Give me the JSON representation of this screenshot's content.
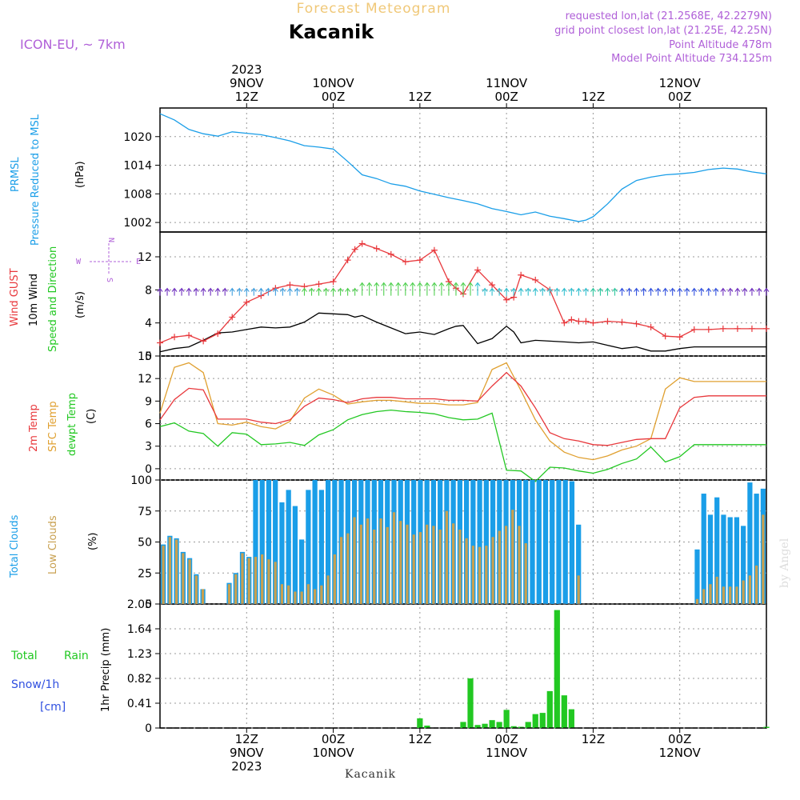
{
  "header": {
    "title": "Forecast Meteogram",
    "location": "Kacanik",
    "model": "ICON-EU, ~ 7km",
    "requested": "requested lon,lat (21.2568E, 42.2279N)",
    "grid_point": "grid point closest lon,lat (21.25E, 42.25N)",
    "point_altitude": "Point Altitude 478m",
    "model_altitude": "Model Point Altitude 734.125m",
    "footer": "Kacanik",
    "credit": "by Angel"
  },
  "time_axis": {
    "top": [
      {
        "hour": 12,
        "line1": "2023",
        "line2": "9NOV",
        "line3": "12Z"
      },
      {
        "hour": 24,
        "line1": "",
        "line2": "10NOV",
        "line3": "00Z"
      },
      {
        "hour": 36,
        "line1": "",
        "line2": "",
        "line3": "12Z"
      },
      {
        "hour": 48,
        "line1": "",
        "line2": "11NOV",
        "line3": "00Z"
      },
      {
        "hour": 60,
        "line1": "",
        "line2": "",
        "line3": "12Z"
      },
      {
        "hour": 72,
        "line1": "",
        "line2": "12NOV",
        "line3": "00Z"
      }
    ],
    "bottom": [
      {
        "hour": 12,
        "line1": "12Z",
        "line2": "9NOV",
        "line3": "2023"
      },
      {
        "hour": 24,
        "line1": "00Z",
        "line2": "10NOV",
        "line3": ""
      },
      {
        "hour": 36,
        "line1": "12Z",
        "line2": "",
        "line3": ""
      },
      {
        "hour": 48,
        "line1": "00Z",
        "line2": "11NOV",
        "line3": ""
      },
      {
        "hour": 60,
        "line1": "12Z",
        "line2": "",
        "line3": ""
      },
      {
        "hour": 72,
        "line1": "00Z",
        "line2": "12NOV",
        "line3": ""
      }
    ]
  },
  "panels": {
    "pressure": {
      "label1": "PRMSL",
      "label2": "Pressure Reduced to MSL",
      "unit": "(hPa)",
      "ticks": [
        "1002",
        "1008",
        "1014",
        "1020"
      ]
    },
    "wind": {
      "label1": "Wind GUST",
      "label2": "10m Wind",
      "label3": "Speed and Direction",
      "unit": "(m/s)",
      "ticks": [
        "0",
        "4",
        "8",
        "12"
      ],
      "compass_n": "N",
      "compass_s": "S",
      "compass_w": "W",
      "compass_e": "E"
    },
    "temp": {
      "label1": "2m Temp",
      "label2": "SFC Temp",
      "label3": "dewpt Temp",
      "unit": "(C)",
      "ticks": [
        "0",
        "3",
        "6",
        "9",
        "12",
        "15"
      ]
    },
    "clouds": {
      "label1": "Total Clouds",
      "label2": "Low Clouds",
      "unit": "(%)",
      "ticks": [
        "0",
        "25",
        "50",
        "75",
        "100"
      ]
    },
    "precip": {
      "label1": "Total",
      "label1b": "Rain",
      "label2": "Snow/1h",
      "label3": "[cm]",
      "unit": "1hr Precip (mm)",
      "ticks": [
        "0",
        "0.41",
        "0.82",
        "1.23",
        "1.64",
        "2.05"
      ]
    }
  },
  "colors": {
    "pressure": "#1a9ee8",
    "gust": "#e8383c",
    "wind": "#000000",
    "temp2m": "#e8383c",
    "sfc": "#e0a030",
    "dewpt": "#22c822",
    "total_clouds": "#1a9ee8",
    "low_clouds": "#c8a050",
    "rain": "#22c822",
    "title": "#f0c878",
    "info": "#b060d8",
    "snow": "#3050e0",
    "frame": "#000000"
  },
  "chart_data": {
    "type": "line",
    "x_unit": "forecast hour (0 = 2023-11-09 04Z)",
    "x_range": [
      0,
      84
    ],
    "series": {
      "pressure_hpa": {
        "x": [
          0,
          2,
          4,
          6,
          8,
          10,
          12,
          14,
          16,
          18,
          20,
          22,
          24,
          26,
          28,
          30,
          32,
          34,
          36,
          38,
          40,
          42,
          44,
          46,
          48,
          50,
          52,
          54,
          56,
          58,
          59,
          60,
          62,
          64,
          66,
          68,
          70,
          72,
          74,
          76,
          78,
          80,
          82,
          84
        ],
        "y": [
          1024.8,
          1023.5,
          1021.5,
          1020.6,
          1020.1,
          1021,
          1020.7,
          1020.4,
          1019.8,
          1019.1,
          1018.1,
          1017.8,
          1017.4,
          1014.8,
          1012,
          1011.2,
          1010.1,
          1009.6,
          1008.6,
          1007.9,
          1007.2,
          1006.6,
          1005.9,
          1004.9,
          1004.3,
          1003.6,
          1004.2,
          1003.3,
          1002.8,
          1002.2,
          1002.5,
          1003.2,
          1005.9,
          1009,
          1010.8,
          1011.5,
          1012,
          1012.2,
          1012.5,
          1013.1,
          1013.4,
          1013.2,
          1012.6,
          1012.2
        ]
      },
      "gust_ms": {
        "x": [
          0,
          2,
          4,
          6,
          8,
          10,
          12,
          14,
          16,
          18,
          20,
          22,
          24,
          26,
          27,
          28,
          30,
          32,
          34,
          36,
          38,
          40,
          41,
          42,
          44,
          46,
          48,
          49,
          50,
          52,
          54,
          56,
          57,
          58,
          59,
          60,
          62,
          64,
          66,
          68,
          70,
          72,
          74,
          76,
          78,
          80,
          82,
          84
        ],
        "y": [
          1.6,
          2.3,
          2.5,
          1.8,
          2.7,
          4.7,
          6.5,
          7.3,
          8.2,
          8.6,
          8.4,
          8.7,
          9,
          11.6,
          12.9,
          13.6,
          13,
          12.3,
          11.4,
          11.6,
          12.8,
          9,
          8.2,
          7.5,
          10.4,
          8.6,
          6.8,
          7.1,
          9.8,
          9.2,
          8,
          4,
          4.4,
          4.2,
          4.2,
          4,
          4.2,
          4.1,
          3.9,
          3.5,
          2.4,
          2.3,
          3.2,
          3.2,
          3.3,
          3.3,
          3.3,
          3.3
        ]
      },
      "wind_ms": {
        "x": [
          0,
          2,
          4,
          6,
          8,
          10,
          12,
          14,
          16,
          18,
          20,
          22,
          24,
          26,
          27,
          28,
          30,
          32,
          34,
          36,
          38,
          40,
          41,
          42,
          44,
          46,
          48,
          49,
          50,
          52,
          54,
          56,
          58,
          60,
          62,
          64,
          66,
          68,
          70,
          72,
          74,
          76,
          78,
          80,
          82,
          84
        ],
        "y": [
          0.5,
          0.9,
          1.1,
          1.9,
          2.8,
          2.9,
          3.2,
          3.5,
          3.4,
          3.5,
          4.1,
          5.2,
          5.1,
          5,
          4.7,
          4.9,
          4.1,
          3.4,
          2.7,
          2.9,
          2.6,
          3.3,
          3.6,
          3.7,
          1.5,
          2.1,
          3.6,
          2.9,
          1.6,
          1.9,
          1.8,
          1.7,
          1.6,
          1.7,
          1.3,
          0.9,
          1.1,
          0.6,
          0.6,
          0.9,
          1.1,
          1.1,
          1.1,
          1.1,
          1.1,
          1.1
        ]
      },
      "temp2m_c": {
        "x": [
          0,
          2,
          4,
          6,
          8,
          10,
          12,
          14,
          16,
          18,
          20,
          22,
          24,
          26,
          28,
          30,
          32,
          34,
          36,
          38,
          40,
          42,
          44,
          46,
          48,
          50,
          52,
          54,
          56,
          58,
          60,
          62,
          64,
          66,
          68,
          70,
          72,
          74,
          76,
          78,
          80,
          82,
          84
        ],
        "y": [
          6.5,
          9.2,
          10.7,
          10.5,
          6.6,
          6.6,
          6.6,
          6.2,
          6,
          6.5,
          8.3,
          9.4,
          9.2,
          8.8,
          9.3,
          9.5,
          9.5,
          9.3,
          9.3,
          9.3,
          9.1,
          9.1,
          9,
          11,
          12.8,
          11,
          8.1,
          4.8,
          4,
          3.7,
          3.2,
          3.1,
          3.5,
          3.9,
          4,
          4,
          8.1,
          9.5,
          9.7,
          9.7,
          9.7,
          9.7,
          9.7
        ]
      },
      "sfc_temp_c": {
        "x": [
          0,
          2,
          4,
          6,
          8,
          10,
          12,
          14,
          16,
          18,
          20,
          22,
          24,
          26,
          28,
          30,
          32,
          34,
          36,
          38,
          40,
          42,
          44,
          46,
          48,
          50,
          52,
          54,
          56,
          58,
          60,
          62,
          64,
          66,
          68,
          70,
          72,
          74,
          76,
          78,
          80,
          82,
          84
        ],
        "y": [
          7.4,
          13.5,
          14.1,
          12.8,
          6,
          5.8,
          6.2,
          5.6,
          5.3,
          6.3,
          9.4,
          10.6,
          9.8,
          8.6,
          8.9,
          9.1,
          9.1,
          8.9,
          8.7,
          8.7,
          8.5,
          8.5,
          8.8,
          13.2,
          14.1,
          10.4,
          6.5,
          3.7,
          2.2,
          1.5,
          1.2,
          1.7,
          2.5,
          3,
          4,
          10.6,
          12.1,
          11.6,
          11.6,
          11.6,
          11.6,
          11.6,
          11.6
        ]
      },
      "dewpt_c": {
        "x": [
          0,
          2,
          4,
          6,
          8,
          10,
          12,
          14,
          16,
          18,
          20,
          22,
          24,
          26,
          28,
          30,
          32,
          34,
          36,
          38,
          40,
          42,
          44,
          46,
          48,
          50,
          52,
          54,
          56,
          58,
          60,
          62,
          64,
          66,
          68,
          70,
          72,
          74,
          76,
          78,
          80,
          82,
          84
        ],
        "y": [
          5.6,
          6.1,
          5,
          4.7,
          3,
          4.8,
          4.6,
          3.2,
          3.3,
          3.5,
          3.1,
          4.5,
          5.2,
          6.5,
          7.2,
          7.6,
          7.8,
          7.6,
          7.5,
          7.3,
          6.8,
          6.5,
          6.6,
          7.4,
          -0.2,
          -0.3,
          -1.7,
          0.2,
          0.1,
          -0.3,
          -0.6,
          -0.1,
          0.7,
          1.3,
          2.9,
          0.9,
          1.6,
          3.2,
          3.2,
          3.2,
          3.2,
          3.2,
          3.2
        ]
      },
      "total_clouds_pct": [
        48,
        55,
        53,
        42,
        37,
        24,
        12,
        0,
        0,
        0,
        17,
        25,
        42,
        38,
        100,
        100,
        100,
        100,
        82,
        92,
        79,
        52,
        92,
        100,
        92,
        100,
        100,
        100,
        100,
        100,
        100,
        100,
        100,
        100,
        100,
        100,
        100,
        100,
        100,
        100,
        100,
        100,
        100,
        100,
        100,
        100,
        100,
        100,
        100,
        100,
        100,
        100,
        100,
        100,
        100,
        100,
        100,
        100,
        100,
        100,
        100,
        100,
        99,
        64,
        0,
        0,
        0,
        0,
        0,
        0,
        0,
        0,
        0,
        0,
        0,
        0,
        0,
        0,
        0,
        0,
        0,
        44,
        89,
        72,
        86,
        72,
        70,
        70,
        63,
        98,
        89,
        93
      ],
      "low_clouds_pct": [
        47,
        54,
        52,
        41,
        36,
        23,
        12,
        0,
        0,
        0,
        16,
        24,
        41,
        37,
        38,
        40,
        36,
        34,
        16,
        15,
        10,
        10,
        16,
        12,
        15,
        23,
        40,
        54,
        57,
        70,
        64,
        69,
        60,
        69,
        62,
        74,
        67,
        64,
        56,
        58,
        64,
        63,
        60,
        75,
        65,
        60,
        53,
        47,
        46,
        47,
        54,
        59,
        63,
        76,
        63,
        49,
        0,
        0,
        0,
        0,
        0,
        0,
        0,
        23,
        0,
        0,
        0,
        0,
        0,
        0,
        0,
        0,
        0,
        0,
        0,
        0,
        0,
        0,
        0,
        0,
        0,
        4,
        12,
        16,
        22,
        14,
        14,
        14,
        19,
        23,
        31,
        72
      ],
      "precip_mm": {
        "x": [
          36,
          37,
          42,
          43,
          44,
          45,
          46,
          47,
          48,
          49,
          50,
          51,
          52,
          53,
          54,
          55,
          56,
          57,
          58,
          59,
          84
        ],
        "y": [
          0.16,
          0.04,
          0.1,
          0.82,
          0.05,
          0.07,
          0.13,
          0.1,
          0.3,
          0.03,
          0.02,
          0.1,
          0.23,
          0.25,
          0.61,
          1.95,
          0.54,
          0.31,
          0.0,
          0.0,
          0.02
        ]
      }
    },
    "axes": {
      "pressure": {
        "ylim": [
          1000,
          1026
        ]
      },
      "wind": {
        "ylim": [
          0,
          15
        ]
      },
      "temp": {
        "ylim": [
          -1.5,
          15
        ]
      },
      "clouds": {
        "ylim": [
          0,
          100
        ]
      },
      "precip": {
        "ylim": [
          0,
          2.05
        ]
      }
    }
  }
}
